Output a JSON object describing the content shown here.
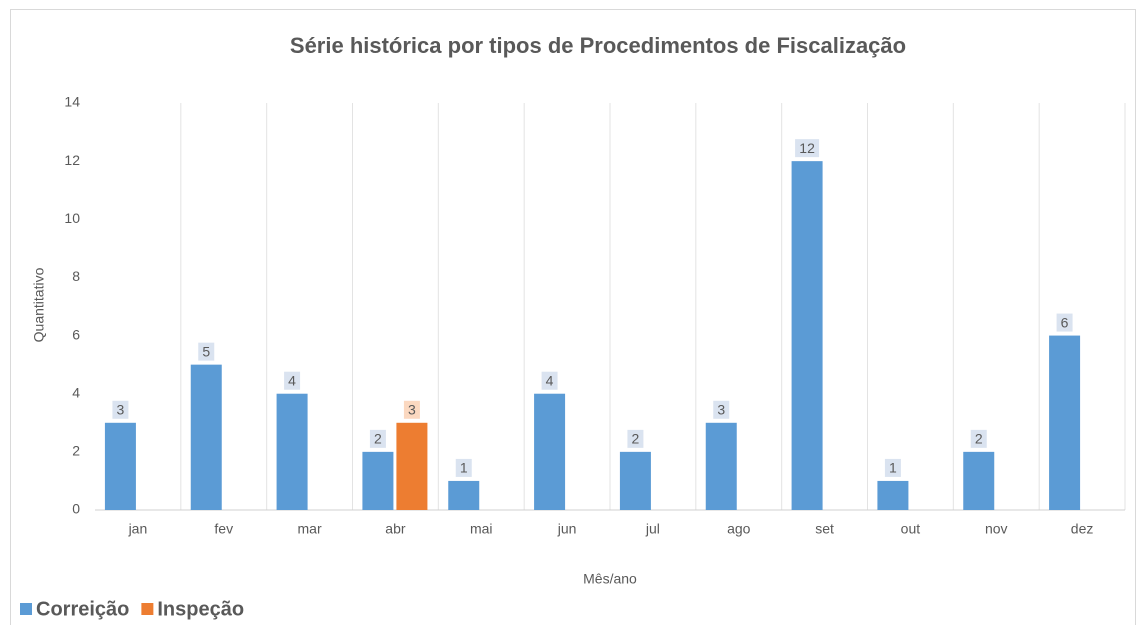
{
  "chart_data": {
    "type": "bar",
    "title": "Série histórica por tipos de Procedimentos de Fiscalização",
    "x_label": "Mês/ano",
    "y_label": "Quantitativo",
    "categories": [
      "jan",
      "fev",
      "mar",
      "abr",
      "mai",
      "jun",
      "jul",
      "ago",
      "set",
      "out",
      "nov",
      "dez"
    ],
    "series": [
      {
        "name": "Correição",
        "color": "#5b9bd5",
        "values": [
          3,
          5,
          4,
          2,
          1,
          4,
          2,
          3,
          12,
          1,
          2,
          6
        ]
      },
      {
        "name": "Inspeção",
        "color": "#ed7d31",
        "values": [
          null,
          null,
          null,
          3,
          null,
          null,
          null,
          null,
          null,
          null,
          null,
          null
        ]
      }
    ],
    "ylim": [
      0,
      14
    ],
    "yticks": [
      0,
      2,
      4,
      6,
      8,
      10,
      12,
      14
    ],
    "legend": "bottom-left"
  }
}
